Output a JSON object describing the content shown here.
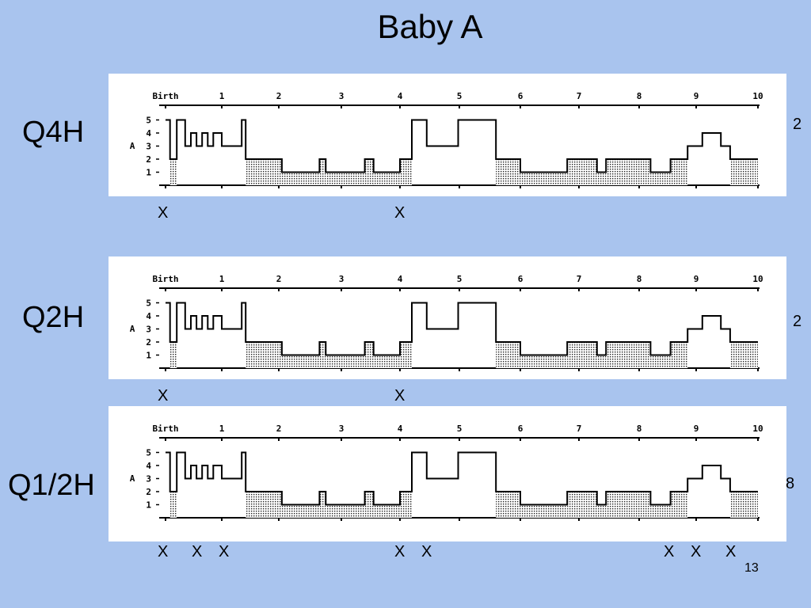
{
  "title": "Baby A",
  "slide_number": "13",
  "chart_data": {
    "type": "line",
    "ylabel": "A",
    "x_ticks": [
      "Birth",
      "1",
      "2",
      "3",
      "4",
      "5",
      "6",
      "7",
      "8",
      "9",
      "10"
    ],
    "y_ticks": [
      "1",
      "2",
      "3",
      "4",
      "5"
    ],
    "ylim": [
      0,
      5.5
    ],
    "xlim": [
      0,
      10
    ],
    "step_series": {
      "x": [
        0,
        0.08,
        0.08,
        0.2,
        0.2,
        0.35,
        0.35,
        0.45,
        0.45,
        0.55,
        0.55,
        0.65,
        0.65,
        0.75,
        0.75,
        0.85,
        0.85,
        1.0,
        1.0,
        1.35,
        1.35,
        1.42,
        1.42,
        2.05,
        2.05,
        2.65,
        2.65,
        2.75,
        2.75,
        3.4,
        3.4,
        3.55,
        3.55,
        4.0,
        4.0,
        4.2,
        4.2,
        4.45,
        4.45,
        4.98,
        4.98,
        5.6,
        5.6,
        6.0,
        6.0,
        6.8,
        6.8,
        7.3,
        7.3,
        7.45,
        7.45,
        8.2,
        8.2,
        8.55,
        8.55,
        8.85,
        8.85,
        9.1,
        9.1,
        9.4,
        9.4,
        9.55,
        9.55,
        9.95,
        9.95,
        10.0
      ],
      "y": [
        5,
        5,
        2,
        2,
        5,
        5,
        3,
        3,
        4,
        4,
        3,
        3,
        4,
        4,
        3,
        3,
        4,
        4,
        3,
        3,
        5,
        5,
        2,
        2,
        1,
        1,
        2,
        2,
        1,
        1,
        2,
        2,
        1,
        1,
        2,
        2,
        5,
        5,
        3,
        3,
        5,
        5,
        2,
        2,
        1,
        1,
        2,
        2,
        1,
        1,
        2,
        2,
        1,
        1,
        2,
        2,
        3,
        3,
        4,
        4,
        3,
        3,
        2,
        2,
        2,
        2
      ]
    },
    "rows": [
      {
        "label": "Q4H",
        "count": "2",
        "marks": [
          "X",
          "X"
        ]
      },
      {
        "label": "Q2H",
        "count": "2",
        "marks": [
          "X",
          "X"
        ]
      },
      {
        "label": "Q1/2H",
        "count": "8",
        "marks": [
          "X",
          "X",
          "X",
          "X",
          "X",
          "X",
          "X",
          "X"
        ]
      }
    ]
  }
}
